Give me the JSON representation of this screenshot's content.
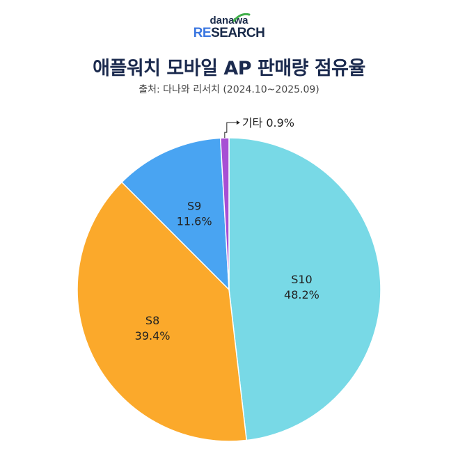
{
  "logo": {
    "top": "danawa",
    "bottom_accent": "RE",
    "bottom_rest": "SEARCH"
  },
  "chart_data": {
    "type": "pie",
    "title": "애플워치 모바일 AP 판매량 점유율",
    "subtitle": "출처: 다나와 리서치 (2024.10~2025.09)",
    "slices": [
      {
        "label": "S10",
        "value": 48.2,
        "value_label": "48.2%",
        "color": "#78d9e6"
      },
      {
        "label": "S8",
        "value": 39.4,
        "value_label": "39.4%",
        "color": "#fba92b"
      },
      {
        "label": "S9",
        "value": 11.6,
        "value_label": "11.6%",
        "color": "#49a4f2"
      },
      {
        "label": "기타",
        "value": 0.9,
        "value_label": "0.9%",
        "color": "#a74fd4"
      }
    ]
  }
}
